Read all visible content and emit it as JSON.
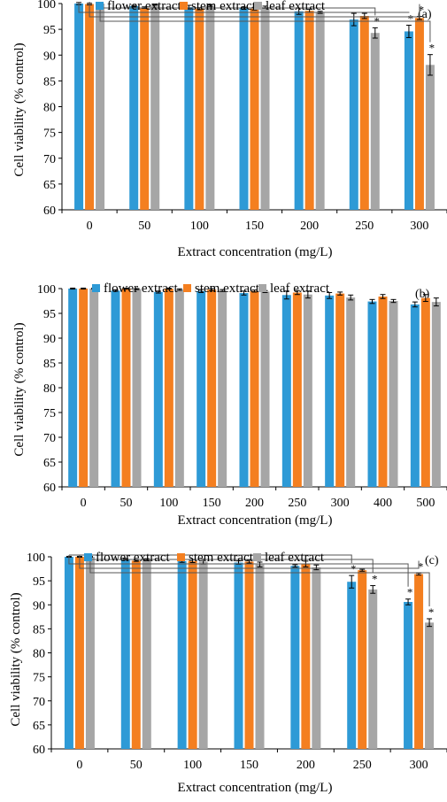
{
  "chart_data": [
    {
      "type": "bar",
      "panel_label": "(a)",
      "categories": [
        "0",
        "50",
        "100",
        "150",
        "200",
        "250",
        "300"
      ],
      "series": [
        {
          "name": "flower extract",
          "values": [
            100.0,
            99.5,
            99.3,
            99.1,
            98.5,
            96.9,
            94.6
          ],
          "errors": [
            0.2,
            0.15,
            0.35,
            0.2,
            0.6,
            1.2,
            1.2
          ]
        },
        {
          "name": "stem extract",
          "values": [
            99.9,
            99.2,
            99.0,
            99.0,
            98.6,
            97.6,
            97.2
          ],
          "errors": [
            0.15,
            0.15,
            0.2,
            0.25,
            0.3,
            0.5,
            0.3
          ]
        },
        {
          "name": "leaf extract",
          "values": [
            100.0,
            99.8,
            99.6,
            99.3,
            98.3,
            94.3,
            88.1
          ],
          "errors": [
            0.1,
            0.1,
            0.15,
            0.2,
            0.2,
            1.0,
            2.0
          ]
        }
      ],
      "significance": [
        {
          "category": "250",
          "series": "leaf extract",
          "mark": "*"
        },
        {
          "category": "300",
          "series": "flower extract",
          "mark": "*"
        },
        {
          "category": "300",
          "series": "stem extract",
          "mark": "*"
        },
        {
          "category": "300",
          "series": "leaf extract",
          "mark": "*"
        }
      ],
      "brackets": [
        {
          "category": "250",
          "series": "leaf extract"
        },
        {
          "category": "300",
          "series": "flower extract"
        },
        {
          "category": "300",
          "series": "stem extract"
        },
        {
          "category": "300",
          "series": "leaf extract"
        }
      ],
      "xlabel": "Extract concentration  (mg/L)",
      "ylabel": "Cell viability  (% control)",
      "ylim": [
        60,
        100
      ],
      "yticks": [
        60,
        65,
        70,
        75,
        80,
        85,
        90,
        95,
        100
      ],
      "legend_placement": "top"
    },
    {
      "type": "bar",
      "panel_label": "(b)",
      "categories": [
        "0",
        "50",
        "100",
        "150",
        "200",
        "250",
        "300",
        "400",
        "500"
      ],
      "series": [
        {
          "name": "flower extract",
          "values": [
            100.0,
            99.6,
            99.3,
            99.5,
            99.1,
            98.7,
            98.6,
            97.4,
            96.8
          ],
          "errors": [
            0.1,
            0.15,
            0.2,
            0.3,
            0.4,
            0.8,
            0.6,
            0.4,
            0.5
          ]
        },
        {
          "name": "stem extract",
          "values": [
            100.0,
            100.0,
            100.0,
            99.8,
            99.5,
            99.2,
            99.0,
            98.4,
            98.1
          ],
          "errors": [
            0.1,
            0.1,
            0.1,
            0.2,
            0.2,
            0.4,
            0.3,
            0.4,
            0.7
          ]
        },
        {
          "name": "leaf extract",
          "values": [
            100.0,
            99.9,
            99.8,
            99.6,
            99.4,
            98.8,
            98.2,
            97.5,
            97.3
          ],
          "errors": [
            0.1,
            0.1,
            0.15,
            0.2,
            0.2,
            0.7,
            0.5,
            0.3,
            0.8
          ]
        }
      ],
      "significance": [],
      "brackets": [],
      "xlabel": "Extract concentration  (mg/L)",
      "ylabel": "Cell viability  (% control)",
      "ylim": [
        60,
        100
      ],
      "yticks": [
        60,
        65,
        70,
        75,
        80,
        85,
        90,
        95,
        100
      ],
      "legend_placement": "top"
    },
    {
      "type": "bar",
      "panel_label": "(c)",
      "categories": [
        "0",
        "50",
        "100",
        "150",
        "200",
        "250",
        "300"
      ],
      "series": [
        {
          "name": "flower extract",
          "values": [
            100.0,
            99.5,
            99.1,
            98.8,
            98.1,
            94.8,
            90.6
          ],
          "errors": [
            0.1,
            0.15,
            0.25,
            0.35,
            0.25,
            1.3,
            0.6
          ]
        },
        {
          "name": "stem extract",
          "values": [
            100.0,
            99.2,
            99.1,
            99.0,
            98.5,
            97.2,
            96.4
          ],
          "errors": [
            0.1,
            0.15,
            0.3,
            0.3,
            0.6,
            0.2,
            0.2
          ]
        },
        {
          "name": "leaf extract",
          "values": [
            100.0,
            99.4,
            99.0,
            98.4,
            97.8,
            93.2,
            86.3
          ],
          "errors": [
            0.1,
            0.2,
            0.5,
            0.5,
            0.5,
            0.8,
            0.8
          ]
        }
      ],
      "significance": [
        {
          "category": "250",
          "series": "flower extract",
          "mark": "*"
        },
        {
          "category": "250",
          "series": "leaf extract",
          "mark": "*"
        },
        {
          "category": "300",
          "series": "flower extract",
          "mark": "*"
        },
        {
          "category": "300",
          "series": "stem extract",
          "mark": "*"
        },
        {
          "category": "300",
          "series": "leaf extract",
          "mark": "*"
        }
      ],
      "brackets": [
        {
          "category": "250",
          "series": "flower extract"
        },
        {
          "category": "250",
          "series": "leaf extract"
        },
        {
          "category": "300",
          "series": "flower extract"
        },
        {
          "category": "300",
          "series": "stem extract"
        },
        {
          "category": "300",
          "series": "leaf extract"
        }
      ],
      "xlabel": "Extract concentration  (mg/L)",
      "ylabel": "Cell viability  (% control)",
      "ylim": [
        60,
        100
      ],
      "yticks": [
        60,
        65,
        70,
        75,
        80,
        85,
        90,
        95,
        100
      ],
      "legend_placement": "top"
    }
  ],
  "colors": {
    "flower extract": "#2E9AD6",
    "stem extract": "#F47F20",
    "leaf extract": "#A6A6A6"
  }
}
